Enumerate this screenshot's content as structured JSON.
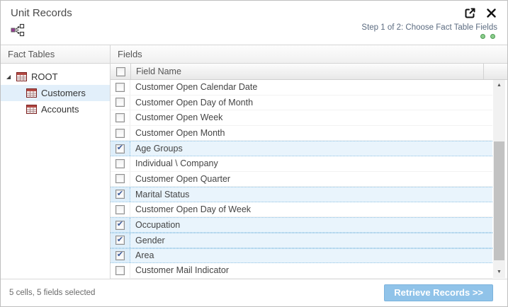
{
  "window": {
    "title": "Unit Records"
  },
  "toolbar": {
    "step_text": "Step 1 of 2: Choose Fact Table Fields",
    "steps_total": 2
  },
  "fact_tables": {
    "title": "Fact Tables",
    "root": {
      "label": "ROOT",
      "expanded": true
    },
    "children": [
      {
        "label": "Customers",
        "selected": true
      },
      {
        "label": "Accounts",
        "selected": false
      }
    ]
  },
  "fields": {
    "title": "Fields",
    "column_header": "Field Name",
    "select_all_checked": false,
    "rows": [
      {
        "label": "Customer Open Calendar Date",
        "checked": false
      },
      {
        "label": "Customer Open Day of Month",
        "checked": false
      },
      {
        "label": "Customer Open Week",
        "checked": false
      },
      {
        "label": "Customer Open Month",
        "checked": false
      },
      {
        "label": "Age Groups",
        "checked": true
      },
      {
        "label": "Individual \\ Company",
        "checked": false
      },
      {
        "label": "Customer Open Quarter",
        "checked": false
      },
      {
        "label": "Marital Status",
        "checked": true
      },
      {
        "label": "Customer Open Day of Week",
        "checked": false
      },
      {
        "label": "Occupation",
        "checked": true
      },
      {
        "label": "Gender",
        "checked": true
      },
      {
        "label": "Area",
        "checked": true
      },
      {
        "label": "Customer Mail Indicator",
        "checked": false
      }
    ]
  },
  "status": {
    "text": "5 cells, 5 fields selected",
    "button_label": "Retrieve Records >>"
  },
  "colors": {
    "accent_blue": "#90c3e9",
    "row_selected": "#e9f4fc",
    "tree_selected": "#e2effa",
    "step_dot_green": "#8bcd8b",
    "table_icon_red": "#a03332",
    "check_blue": "#3b5a9b"
  }
}
